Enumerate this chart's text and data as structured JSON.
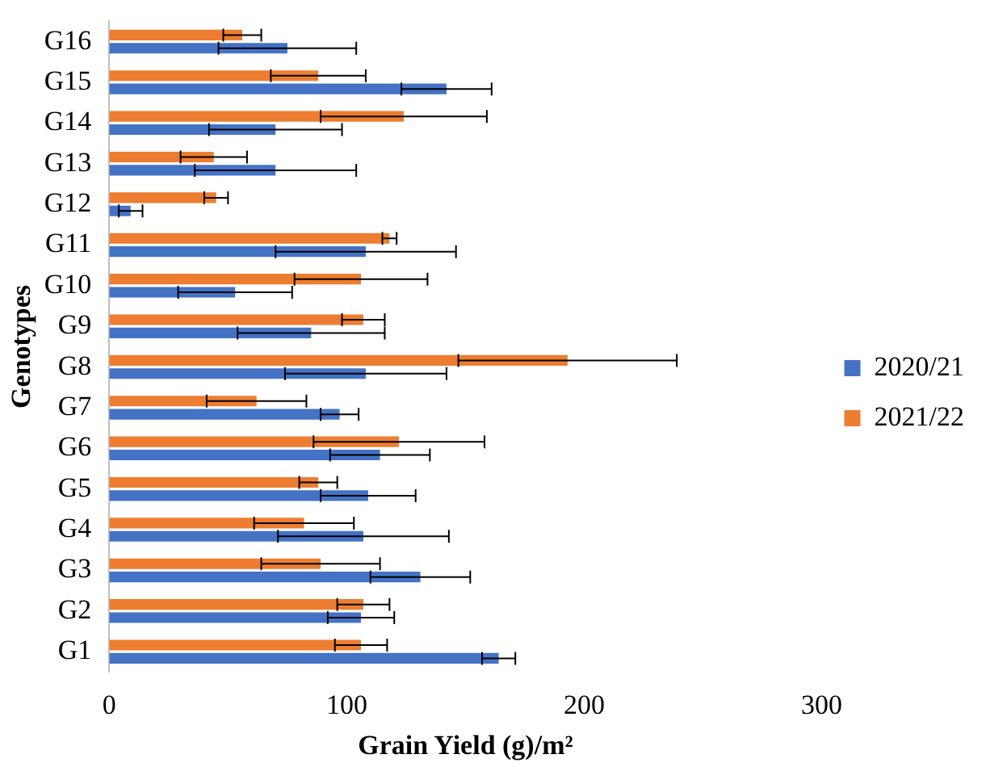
{
  "chart_data": {
    "type": "bar",
    "orientation": "horizontal",
    "xlabel": "Grain Yield (g)/m²",
    "ylabel": "Genotypes",
    "categories": [
      "G16",
      "G15",
      "G14",
      "G13",
      "G12",
      "G11",
      "G10",
      "G9",
      "G8",
      "G7",
      "G6",
      "G5",
      "G4",
      "G3",
      "G2",
      "G1"
    ],
    "series": [
      {
        "name": "2021/22",
        "color": "#ed7d31",
        "values": [
          56,
          88,
          124,
          44,
          45,
          118,
          106,
          107,
          193,
          62,
          122,
          88,
          82,
          89,
          107,
          106
        ],
        "errors": [
          8,
          20,
          35,
          14,
          5,
          3,
          28,
          9,
          46,
          21,
          36,
          8,
          21,
          25,
          11,
          11
        ]
      },
      {
        "name": "2020/21",
        "color": "#4472c4",
        "values": [
          75,
          142,
          70,
          70,
          9,
          108,
          53,
          85,
          108,
          97,
          114,
          109,
          107,
          131,
          106,
          164
        ],
        "errors": [
          29,
          19,
          28,
          34,
          5,
          38,
          24,
          31,
          34,
          8,
          21,
          20,
          36,
          21,
          14,
          7
        ]
      }
    ],
    "xlim": [
      0,
      300
    ],
    "xticks": [
      0,
      100,
      200,
      300
    ],
    "grid": false,
    "legend": "right"
  }
}
